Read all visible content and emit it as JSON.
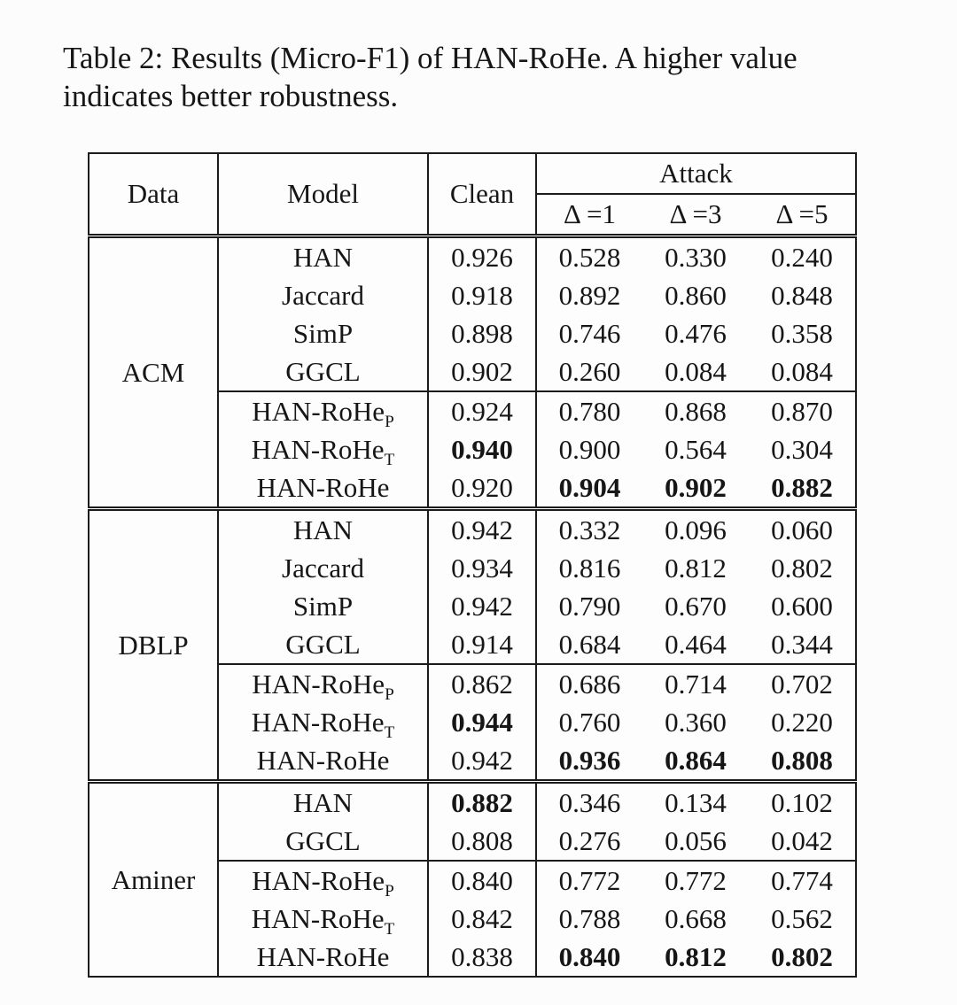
{
  "colors": {
    "background": "#fcfcfc",
    "text": "#161616",
    "border": "#1b1b1b"
  },
  "caption": {
    "lines": [
      "Table 2: Results (Micro-F1) of HAN-RoHe. A higher value",
      "indicates better robustness."
    ]
  },
  "table": {
    "headers": {
      "data": "Data",
      "model": "Model",
      "clean": "Clean",
      "attack": "Attack",
      "deltas": [
        "Δ =1",
        "Δ =3",
        "Δ =5"
      ]
    },
    "groups": [
      {
        "data": "ACM",
        "baseline_rows": [
          {
            "model": "HAN",
            "sub": "",
            "clean": "0.926",
            "clean_bold": false,
            "attack": [
              "0.528",
              "0.330",
              "0.240"
            ],
            "attack_bold": false
          },
          {
            "model": "Jaccard",
            "sub": "",
            "clean": "0.918",
            "clean_bold": false,
            "attack": [
              "0.892",
              "0.860",
              "0.848"
            ],
            "attack_bold": false
          },
          {
            "model": "SimP",
            "sub": "",
            "clean": "0.898",
            "clean_bold": false,
            "attack": [
              "0.746",
              "0.476",
              "0.358"
            ],
            "attack_bold": false
          },
          {
            "model": "GGCL",
            "sub": "",
            "clean": "0.902",
            "clean_bold": false,
            "attack": [
              "0.260",
              "0.084",
              "0.084"
            ],
            "attack_bold": false
          }
        ],
        "rohe_rows": [
          {
            "model": "HAN-RoHe",
            "sub": "P",
            "clean": "0.924",
            "clean_bold": false,
            "attack": [
              "0.780",
              "0.868",
              "0.870"
            ],
            "attack_bold": false
          },
          {
            "model": "HAN-RoHe",
            "sub": "T",
            "clean": "0.940",
            "clean_bold": true,
            "attack": [
              "0.900",
              "0.564",
              "0.304"
            ],
            "attack_bold": false
          },
          {
            "model": "HAN-RoHe",
            "sub": "",
            "clean": "0.920",
            "clean_bold": false,
            "attack": [
              "0.904",
              "0.902",
              "0.882"
            ],
            "attack_bold": true
          }
        ]
      },
      {
        "data": "DBLP",
        "baseline_rows": [
          {
            "model": "HAN",
            "sub": "",
            "clean": "0.942",
            "clean_bold": false,
            "attack": [
              "0.332",
              "0.096",
              "0.060"
            ],
            "attack_bold": false
          },
          {
            "model": "Jaccard",
            "sub": "",
            "clean": "0.934",
            "clean_bold": false,
            "attack": [
              "0.816",
              "0.812",
              "0.802"
            ],
            "attack_bold": false
          },
          {
            "model": "SimP",
            "sub": "",
            "clean": "0.942",
            "clean_bold": false,
            "attack": [
              "0.790",
              "0.670",
              "0.600"
            ],
            "attack_bold": false
          },
          {
            "model": "GGCL",
            "sub": "",
            "clean": "0.914",
            "clean_bold": false,
            "attack": [
              "0.684",
              "0.464",
              "0.344"
            ],
            "attack_bold": false
          }
        ],
        "rohe_rows": [
          {
            "model": "HAN-RoHe",
            "sub": "P",
            "clean": "0.862",
            "clean_bold": false,
            "attack": [
              "0.686",
              "0.714",
              "0.702"
            ],
            "attack_bold": false
          },
          {
            "model": "HAN-RoHe",
            "sub": "T",
            "clean": "0.944",
            "clean_bold": true,
            "attack": [
              "0.760",
              "0.360",
              "0.220"
            ],
            "attack_bold": false
          },
          {
            "model": "HAN-RoHe",
            "sub": "",
            "clean": "0.942",
            "clean_bold": false,
            "attack": [
              "0.936",
              "0.864",
              "0.808"
            ],
            "attack_bold": true
          }
        ]
      },
      {
        "data": "Aminer",
        "baseline_rows": [
          {
            "model": "HAN",
            "sub": "",
            "clean": "0.882",
            "clean_bold": true,
            "attack": [
              "0.346",
              "0.134",
              "0.102"
            ],
            "attack_bold": false
          },
          {
            "model": "GGCL",
            "sub": "",
            "clean": "0.808",
            "clean_bold": false,
            "attack": [
              "0.276",
              "0.056",
              "0.042"
            ],
            "attack_bold": false
          }
        ],
        "rohe_rows": [
          {
            "model": "HAN-RoHe",
            "sub": "P",
            "clean": "0.840",
            "clean_bold": false,
            "attack": [
              "0.772",
              "0.772",
              "0.774"
            ],
            "attack_bold": false
          },
          {
            "model": "HAN-RoHe",
            "sub": "T",
            "clean": "0.842",
            "clean_bold": false,
            "attack": [
              "0.788",
              "0.668",
              "0.562"
            ],
            "attack_bold": false
          },
          {
            "model": "HAN-RoHe",
            "sub": "",
            "clean": "0.838",
            "clean_bold": false,
            "attack": [
              "0.840",
              "0.812",
              "0.802"
            ],
            "attack_bold": true
          }
        ]
      }
    ]
  }
}
